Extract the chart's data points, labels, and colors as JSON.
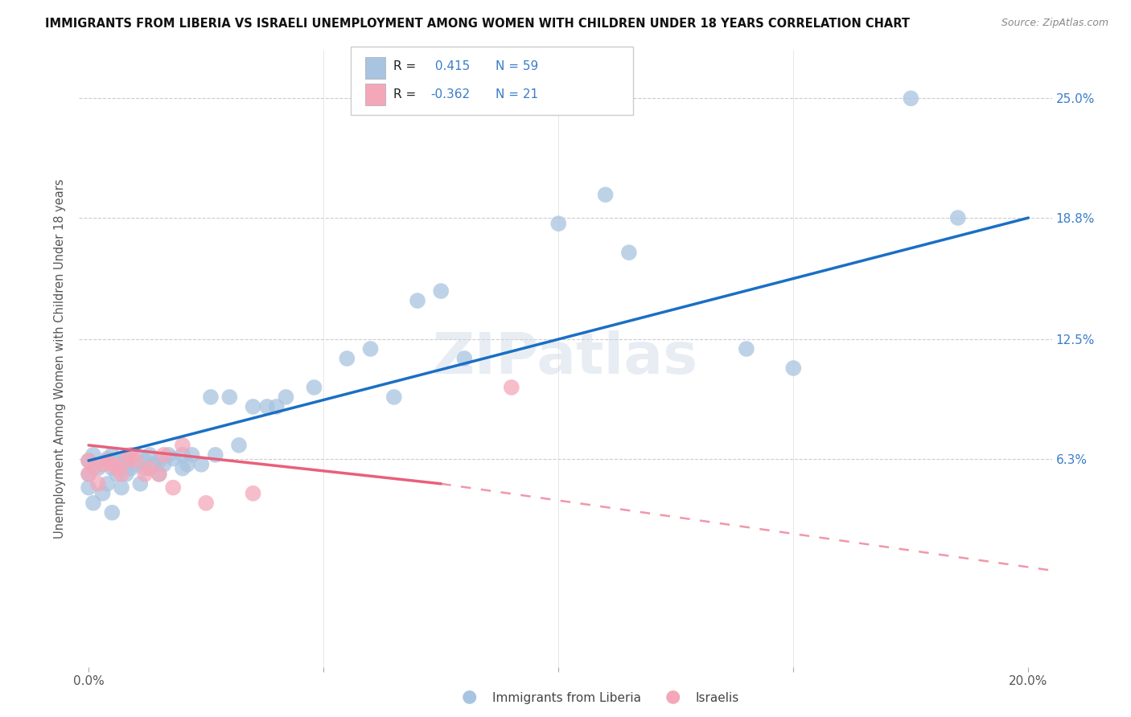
{
  "title": "IMMIGRANTS FROM LIBERIA VS ISRAELI UNEMPLOYMENT AMONG WOMEN WITH CHILDREN UNDER 18 YEARS CORRELATION CHART",
  "source": "Source: ZipAtlas.com",
  "ylabel": "Unemployment Among Women with Children Under 18 years",
  "legend_liberia": "Immigrants from Liberia",
  "legend_israelis": "Israelis",
  "r_liberia": 0.415,
  "n_liberia": 59,
  "r_israelis": -0.362,
  "n_israelis": 21,
  "xlim": [
    -0.002,
    0.205
  ],
  "ylim": [
    -0.045,
    0.275
  ],
  "ytick_pos": [
    0.063,
    0.125,
    0.188,
    0.25
  ],
  "ytick_labels": [
    "6.3%",
    "12.5%",
    "18.8%",
    "25.0%"
  ],
  "xtick_pos": [
    0.0,
    0.05,
    0.1,
    0.15,
    0.2
  ],
  "xtick_labels": [
    "0.0%",
    "",
    "",
    "",
    "20.0%"
  ],
  "color_liberia": "#a8c4e0",
  "color_israelis": "#f4a7b9",
  "line_color_liberia": "#1a6fc4",
  "line_color_israelis": "#e8607a",
  "background": "#ffffff",
  "watermark": "ZIPatlas",
  "liberia_points_x": [
    0.0,
    0.0,
    0.0,
    0.001,
    0.001,
    0.002,
    0.003,
    0.003,
    0.004,
    0.004,
    0.005,
    0.005,
    0.005,
    0.006,
    0.006,
    0.007,
    0.007,
    0.008,
    0.008,
    0.009,
    0.01,
    0.01,
    0.011,
    0.012,
    0.012,
    0.013,
    0.014,
    0.015,
    0.015,
    0.016,
    0.017,
    0.018,
    0.02,
    0.02,
    0.021,
    0.022,
    0.024,
    0.026,
    0.027,
    0.03,
    0.032,
    0.035,
    0.038,
    0.04,
    0.042,
    0.048,
    0.055,
    0.06,
    0.065,
    0.07,
    0.075,
    0.08,
    0.1,
    0.11,
    0.115,
    0.14,
    0.15,
    0.175,
    0.185
  ],
  "liberia_points_y": [
    0.062,
    0.055,
    0.048,
    0.065,
    0.04,
    0.058,
    0.06,
    0.045,
    0.063,
    0.05,
    0.058,
    0.065,
    0.035,
    0.055,
    0.062,
    0.06,
    0.048,
    0.063,
    0.055,
    0.058,
    0.06,
    0.065,
    0.05,
    0.062,
    0.058,
    0.065,
    0.06,
    0.062,
    0.055,
    0.06,
    0.065,
    0.063,
    0.065,
    0.058,
    0.06,
    0.065,
    0.06,
    0.095,
    0.065,
    0.095,
    0.07,
    0.09,
    0.09,
    0.09,
    0.095,
    0.1,
    0.115,
    0.12,
    0.095,
    0.145,
    0.15,
    0.115,
    0.185,
    0.2,
    0.17,
    0.12,
    0.11,
    0.25,
    0.188
  ],
  "israelis_points_x": [
    0.0,
    0.0,
    0.001,
    0.002,
    0.003,
    0.004,
    0.005,
    0.006,
    0.007,
    0.008,
    0.009,
    0.01,
    0.012,
    0.013,
    0.015,
    0.016,
    0.018,
    0.02,
    0.025,
    0.035,
    0.09
  ],
  "israelis_points_y": [
    0.062,
    0.055,
    0.058,
    0.05,
    0.06,
    0.062,
    0.06,
    0.058,
    0.055,
    0.062,
    0.065,
    0.062,
    0.055,
    0.058,
    0.055,
    0.065,
    0.048,
    0.07,
    0.04,
    0.045,
    0.1
  ],
  "line_liberia_x0": 0.0,
  "line_liberia_y0": 0.062,
  "line_liberia_x1": 0.2,
  "line_liberia_y1": 0.188,
  "line_israelis_solid_x0": 0.0,
  "line_israelis_solid_y0": 0.07,
  "line_israelis_solid_x1": 0.075,
  "line_israelis_solid_y1": 0.05,
  "line_israelis_dash_x0": 0.075,
  "line_israelis_dash_y0": 0.05,
  "line_israelis_dash_x1": 0.205,
  "line_israelis_dash_y1": 0.005
}
